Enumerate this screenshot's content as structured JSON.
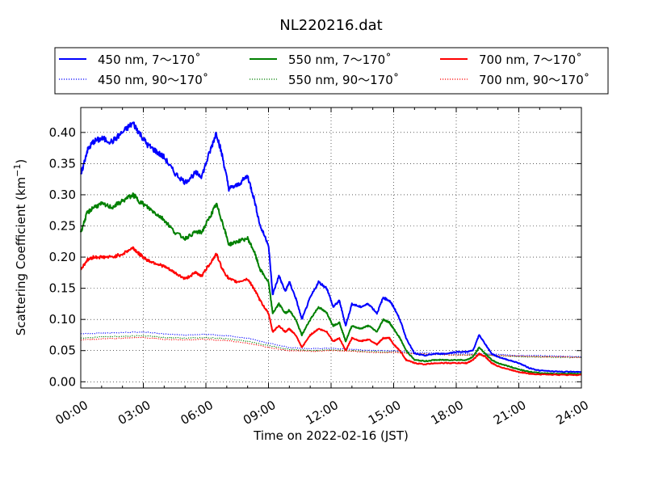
{
  "chart_data": {
    "type": "line",
    "title": "NL220216.dat",
    "xlabel": "Time on 2022-02-16 (JST)",
    "ylabel_main": "Scattering Coefficient (km",
    "ylabel_sup": "−1",
    "ylabel_close": ")",
    "xlim": [
      0,
      24
    ],
    "ylim": [
      -0.01,
      0.44
    ],
    "x_ticks": [
      0,
      3,
      6,
      9,
      12,
      15,
      18,
      21,
      24
    ],
    "x_tick_labels": [
      "00:00",
      "03:00",
      "06:00",
      "09:00",
      "12:00",
      "15:00",
      "18:00",
      "21:00",
      "24:00"
    ],
    "y_ticks": [
      0.0,
      0.05,
      0.1,
      0.15,
      0.2,
      0.25,
      0.3,
      0.35,
      0.4
    ],
    "y_tick_labels": [
      "0.00",
      "0.05",
      "0.10",
      "0.15",
      "0.20",
      "0.25",
      "0.30",
      "0.35",
      "0.40"
    ],
    "grid": true,
    "legend_placement": "above-plot",
    "series": [
      {
        "name": "450 nm, 7 ~ 170°",
        "legend_label": "450 nm, 7～170˚",
        "color": "#0000ff",
        "style": "solid",
        "x": [
          0,
          0.3,
          0.6,
          1,
          1.5,
          2,
          2.5,
          2.8,
          3.2,
          3.6,
          4,
          4.5,
          5,
          5.5,
          5.8,
          6.2,
          6.5,
          6.8,
          7.1,
          7.5,
          8,
          8.3,
          8.6,
          9,
          9.2,
          9.5,
          9.8,
          10,
          10.3,
          10.6,
          11,
          11.4,
          11.8,
          12.1,
          12.4,
          12.7,
          13,
          13.4,
          13.8,
          14.2,
          14.5,
          14.8,
          15,
          15.3,
          15.6,
          16,
          16.5,
          17,
          17.5,
          18,
          18.5,
          18.8,
          19.1,
          19.4,
          19.7,
          20,
          20.5,
          21,
          21.5,
          22,
          23,
          24
        ],
        "values": [
          0.33,
          0.37,
          0.385,
          0.39,
          0.385,
          0.4,
          0.415,
          0.4,
          0.38,
          0.37,
          0.36,
          0.335,
          0.32,
          0.335,
          0.33,
          0.37,
          0.4,
          0.36,
          0.31,
          0.315,
          0.33,
          0.295,
          0.25,
          0.22,
          0.14,
          0.17,
          0.145,
          0.16,
          0.135,
          0.1,
          0.135,
          0.16,
          0.15,
          0.12,
          0.13,
          0.09,
          0.125,
          0.12,
          0.125,
          0.11,
          0.135,
          0.13,
          0.12,
          0.1,
          0.07,
          0.045,
          0.042,
          0.045,
          0.045,
          0.048,
          0.048,
          0.05,
          0.075,
          0.06,
          0.045,
          0.04,
          0.035,
          0.03,
          0.022,
          0.018,
          0.016,
          0.016
        ]
      },
      {
        "name": "550 nm, 7 ~ 170°",
        "legend_label": "550 nm, 7～170˚",
        "color": "#008000",
        "style": "solid",
        "x": [
          0,
          0.3,
          0.6,
          1,
          1.5,
          2,
          2.5,
          2.8,
          3.2,
          3.6,
          4,
          4.5,
          5,
          5.5,
          5.8,
          6.2,
          6.5,
          6.8,
          7.1,
          7.5,
          8,
          8.3,
          8.6,
          9,
          9.2,
          9.5,
          9.8,
          10,
          10.3,
          10.6,
          11,
          11.4,
          11.8,
          12.1,
          12.4,
          12.7,
          13,
          13.4,
          13.8,
          14.2,
          14.5,
          14.8,
          15,
          15.3,
          15.6,
          16,
          16.5,
          17,
          17.5,
          18,
          18.5,
          18.8,
          19.1,
          19.4,
          19.7,
          20,
          20.5,
          21,
          21.5,
          22,
          23,
          24
        ],
        "values": [
          0.24,
          0.27,
          0.28,
          0.285,
          0.28,
          0.29,
          0.3,
          0.29,
          0.28,
          0.27,
          0.26,
          0.24,
          0.23,
          0.24,
          0.24,
          0.265,
          0.285,
          0.255,
          0.22,
          0.225,
          0.23,
          0.21,
          0.18,
          0.16,
          0.11,
          0.125,
          0.11,
          0.115,
          0.1,
          0.075,
          0.1,
          0.12,
          0.11,
          0.09,
          0.095,
          0.065,
          0.09,
          0.085,
          0.09,
          0.08,
          0.1,
          0.095,
          0.085,
          0.07,
          0.05,
          0.035,
          0.033,
          0.035,
          0.035,
          0.035,
          0.035,
          0.04,
          0.055,
          0.045,
          0.035,
          0.03,
          0.025,
          0.02,
          0.016,
          0.014,
          0.013,
          0.013
        ]
      },
      {
        "name": "700 nm, 7 ~ 170°",
        "legend_label": "700 nm, 7～170˚",
        "color": "#ff0000",
        "style": "solid",
        "x": [
          0,
          0.3,
          0.6,
          1,
          1.5,
          2,
          2.5,
          2.8,
          3.2,
          3.6,
          4,
          4.5,
          5,
          5.5,
          5.8,
          6.2,
          6.5,
          6.8,
          7.1,
          7.5,
          8,
          8.3,
          8.6,
          9,
          9.2,
          9.5,
          9.8,
          10,
          10.3,
          10.6,
          11,
          11.4,
          11.8,
          12.1,
          12.4,
          12.7,
          13,
          13.4,
          13.8,
          14.2,
          14.5,
          14.8,
          15,
          15.3,
          15.6,
          16,
          16.5,
          17,
          17.5,
          18,
          18.5,
          18.8,
          19.1,
          19.4,
          19.7,
          20,
          20.5,
          21,
          21.5,
          22,
          23,
          24
        ],
        "values": [
          0.18,
          0.195,
          0.2,
          0.2,
          0.2,
          0.205,
          0.215,
          0.205,
          0.195,
          0.19,
          0.185,
          0.175,
          0.165,
          0.175,
          0.17,
          0.19,
          0.205,
          0.18,
          0.165,
          0.16,
          0.165,
          0.15,
          0.13,
          0.11,
          0.08,
          0.09,
          0.08,
          0.085,
          0.075,
          0.055,
          0.075,
          0.085,
          0.08,
          0.065,
          0.07,
          0.05,
          0.07,
          0.065,
          0.068,
          0.06,
          0.07,
          0.07,
          0.06,
          0.05,
          0.035,
          0.03,
          0.028,
          0.03,
          0.03,
          0.03,
          0.03,
          0.035,
          0.045,
          0.04,
          0.03,
          0.025,
          0.02,
          0.016,
          0.013,
          0.012,
          0.011,
          0.011
        ]
      },
      {
        "name": "450 nm, 90 ~ 170°",
        "legend_label": "450 nm, 90～170˚",
        "color": "#0000ff",
        "style": "dotted",
        "x": [
          0,
          1,
          2,
          3,
          4,
          5,
          6,
          7,
          8,
          9,
          10,
          11,
          12,
          13,
          14,
          15,
          16,
          17,
          18,
          19,
          20,
          21,
          22,
          23,
          24
        ],
        "values": [
          0.077,
          0.078,
          0.079,
          0.08,
          0.077,
          0.075,
          0.076,
          0.074,
          0.07,
          0.062,
          0.055,
          0.053,
          0.054,
          0.052,
          0.05,
          0.05,
          0.047,
          0.046,
          0.045,
          0.045,
          0.044,
          0.042,
          0.042,
          0.041,
          0.04
        ]
      },
      {
        "name": "550 nm, 90 ~ 170°",
        "legend_label": "550 nm, 90～170˚",
        "color": "#008000",
        "style": "dotted",
        "x": [
          0,
          1,
          2,
          3,
          4,
          5,
          6,
          7,
          8,
          9,
          10,
          11,
          12,
          13,
          14,
          15,
          16,
          17,
          18,
          19,
          20,
          21,
          22,
          23,
          24
        ],
        "values": [
          0.07,
          0.072,
          0.073,
          0.074,
          0.071,
          0.07,
          0.071,
          0.069,
          0.065,
          0.058,
          0.052,
          0.05,
          0.051,
          0.05,
          0.048,
          0.048,
          0.045,
          0.044,
          0.043,
          0.043,
          0.042,
          0.04,
          0.04,
          0.039,
          0.039
        ]
      },
      {
        "name": "700 nm, 90 ~ 170°",
        "legend_label": "700 nm, 90～170˚",
        "color": "#ff0000",
        "style": "dotted",
        "x": [
          0,
          1,
          2,
          3,
          4,
          5,
          6,
          7,
          8,
          9,
          10,
          11,
          12,
          13,
          14,
          15,
          16,
          17,
          18,
          19,
          20,
          21,
          22,
          23,
          24
        ],
        "values": [
          0.067,
          0.069,
          0.07,
          0.071,
          0.068,
          0.067,
          0.068,
          0.066,
          0.062,
          0.055,
          0.05,
          0.049,
          0.05,
          0.049,
          0.047,
          0.047,
          0.045,
          0.044,
          0.043,
          0.043,
          0.042,
          0.041,
          0.04,
          0.04,
          0.039
        ]
      }
    ]
  }
}
